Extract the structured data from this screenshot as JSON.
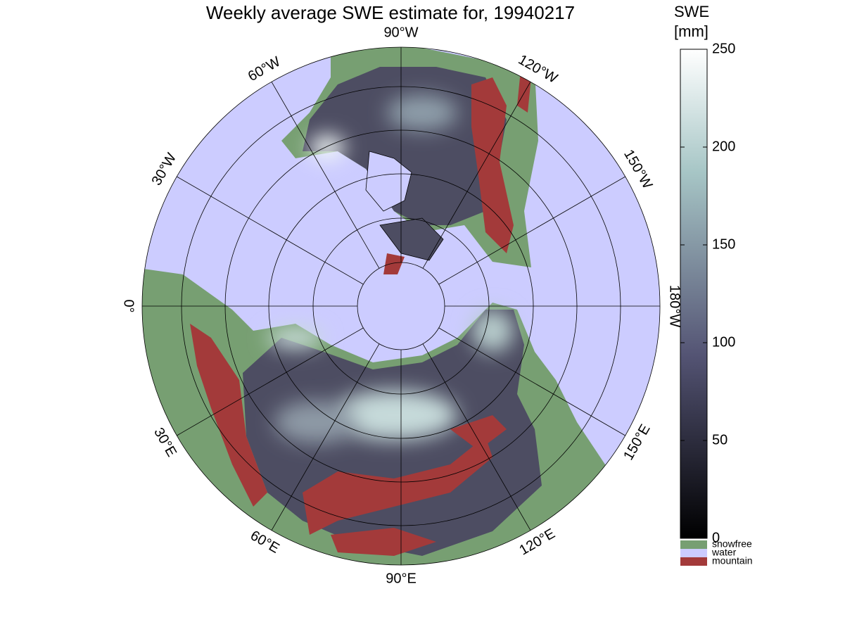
{
  "title": "Weekly average SWE estimate for, 19940217",
  "map": {
    "longitude_labels": [
      "90°W",
      "120°W",
      "150°W",
      "180°W",
      "150°E",
      "120°E",
      "90°E",
      "60°E",
      "30°E",
      "0°",
      "30°W",
      "60°W"
    ]
  },
  "colorbar": {
    "label": [
      "SWE",
      "[mm]"
    ],
    "lim": [
      0,
      250
    ],
    "ticks": [
      0,
      50,
      100,
      150,
      200,
      250
    ],
    "legend": [
      {
        "name": "snowfree",
        "color": "#779f72"
      },
      {
        "name": "water",
        "color": "#ccccff"
      },
      {
        "name": "mountain",
        "color": "#a33a3a"
      }
    ]
  }
}
